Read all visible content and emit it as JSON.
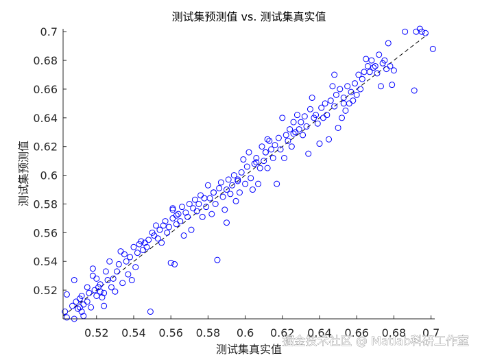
{
  "chart_data": {
    "type": "scatter",
    "title": "测试集预测值 vs. 测试集真实值",
    "xlabel": "测试集真实值",
    "ylabel": "测试集预测值",
    "xlim": [
      0.502,
      0.702
    ],
    "ylim": [
      0.5,
      0.702
    ],
    "xticks": [
      0.52,
      0.54,
      0.56,
      0.58,
      0.6,
      0.62,
      0.64,
      0.66,
      0.68,
      0.7
    ],
    "yticks": [
      0.52,
      0.54,
      0.56,
      0.58,
      0.6,
      0.62,
      0.64,
      0.66,
      0.68,
      0.7
    ],
    "xtick_labels": [
      "0.52",
      "0.54",
      "0.56",
      "0.58",
      "0.6",
      "0.62",
      "0.64",
      "0.66",
      "0.68",
      "0.7"
    ],
    "ytick_labels": [
      "0.52",
      "0.54",
      "0.56",
      "0.58",
      "0.6",
      "0.62",
      "0.64",
      "0.66",
      "0.68",
      "0.7"
    ],
    "grid": false,
    "box": "left-bottom-only",
    "marker_color": "#0000ff",
    "reference_line": {
      "style": "dashed",
      "color": "#000000",
      "x": [
        0.502,
        0.698
      ],
      "y": [
        0.502,
        0.698
      ]
    },
    "series": [
      {
        "points": [
          [
            0.503,
            0.505
          ],
          [
            0.504,
            0.517
          ],
          [
            0.504,
            0.501
          ],
          [
            0.507,
            0.509
          ],
          [
            0.508,
            0.527
          ],
          [
            0.508,
            0.5
          ],
          [
            0.509,
            0.512
          ],
          [
            0.51,
            0.507
          ],
          [
            0.511,
            0.514
          ],
          [
            0.511,
            0.508
          ],
          [
            0.512,
            0.516
          ],
          [
            0.512,
            0.505
          ],
          [
            0.513,
            0.51
          ],
          [
            0.513,
            0.502
          ],
          [
            0.515,
            0.512
          ],
          [
            0.515,
            0.522
          ],
          [
            0.516,
            0.518
          ],
          [
            0.517,
            0.508
          ],
          [
            0.518,
            0.53
          ],
          [
            0.518,
            0.535
          ],
          [
            0.519,
            0.52
          ],
          [
            0.52,
            0.516
          ],
          [
            0.52,
            0.528
          ],
          [
            0.521,
            0.522
          ],
          [
            0.522,
            0.519
          ],
          [
            0.522,
            0.524
          ],
          [
            0.523,
            0.515
          ],
          [
            0.524,
            0.518
          ],
          [
            0.524,
            0.509
          ],
          [
            0.525,
            0.533
          ],
          [
            0.526,
            0.527
          ],
          [
            0.527,
            0.54
          ],
          [
            0.528,
            0.522
          ],
          [
            0.529,
            0.528
          ],
          [
            0.53,
            0.519
          ],
          [
            0.531,
            0.533
          ],
          [
            0.532,
            0.538
          ],
          [
            0.533,
            0.547
          ],
          [
            0.534,
            0.525
          ],
          [
            0.535,
            0.545
          ],
          [
            0.536,
            0.54
          ],
          [
            0.537,
            0.531
          ],
          [
            0.538,
            0.543
          ],
          [
            0.539,
            0.527
          ],
          [
            0.54,
            0.55
          ],
          [
            0.541,
            0.536
          ],
          [
            0.542,
            0.546
          ],
          [
            0.543,
            0.552
          ],
          [
            0.544,
            0.554
          ],
          [
            0.545,
            0.548
          ],
          [
            0.546,
            0.553
          ],
          [
            0.547,
            0.55
          ],
          [
            0.548,
            0.555
          ],
          [
            0.549,
            0.505
          ],
          [
            0.55,
            0.56
          ],
          [
            0.551,
            0.558
          ],
          [
            0.552,
            0.565
          ],
          [
            0.553,
            0.556
          ],
          [
            0.554,
            0.562
          ],
          [
            0.555,
            0.553
          ],
          [
            0.556,
            0.565
          ],
          [
            0.557,
            0.568
          ],
          [
            0.558,
            0.56
          ],
          [
            0.559,
            0.564
          ],
          [
            0.56,
            0.539
          ],
          [
            0.561,
            0.57
          ],
          [
            0.561,
            0.576
          ],
          [
            0.562,
            0.538
          ],
          [
            0.563,
            0.566
          ],
          [
            0.564,
            0.573
          ],
          [
            0.565,
            0.568
          ],
          [
            0.566,
            0.578
          ],
          [
            0.567,
            0.558
          ],
          [
            0.568,
            0.574
          ],
          [
            0.569,
            0.571
          ],
          [
            0.57,
            0.58
          ],
          [
            0.571,
            0.562
          ],
          [
            0.572,
            0.577
          ],
          [
            0.573,
            0.583
          ],
          [
            0.574,
            0.575
          ],
          [
            0.575,
            0.58
          ],
          [
            0.576,
            0.586
          ],
          [
            0.577,
            0.571
          ],
          [
            0.578,
            0.584
          ],
          [
            0.579,
            0.578
          ],
          [
            0.58,
            0.593
          ],
          [
            0.581,
            0.584
          ],
          [
            0.582,
            0.573
          ],
          [
            0.583,
            0.588
          ],
          [
            0.584,
            0.58
          ],
          [
            0.585,
            0.541
          ],
          [
            0.586,
            0.591
          ],
          [
            0.587,
            0.595
          ],
          [
            0.588,
            0.585
          ],
          [
            0.589,
            0.576
          ],
          [
            0.59,
            0.59
          ],
          [
            0.591,
            0.597
          ],
          [
            0.592,
            0.587
          ],
          [
            0.593,
            0.593
          ],
          [
            0.594,
            0.6
          ],
          [
            0.595,
            0.582
          ],
          [
            0.596,
            0.596
          ],
          [
            0.597,
            0.588
          ],
          [
            0.598,
            0.602
          ],
          [
            0.599,
            0.611
          ],
          [
            0.6,
            0.594
          ],
          [
            0.601,
            0.606
          ],
          [
            0.602,
            0.616
          ],
          [
            0.603,
            0.598
          ],
          [
            0.604,
            0.59
          ],
          [
            0.605,
            0.608
          ],
          [
            0.606,
            0.612
          ],
          [
            0.607,
            0.594
          ],
          [
            0.608,
            0.605
          ],
          [
            0.609,
            0.62
          ],
          [
            0.61,
            0.61
          ],
          [
            0.611,
            0.616
          ],
          [
            0.612,
            0.605
          ],
          [
            0.613,
            0.624
          ],
          [
            0.614,
            0.618
          ],
          [
            0.615,
            0.612
          ],
          [
            0.616,
            0.621
          ],
          [
            0.617,
            0.594
          ],
          [
            0.618,
            0.626
          ],
          [
            0.619,
            0.618
          ],
          [
            0.62,
            0.64
          ],
          [
            0.621,
            0.612
          ],
          [
            0.622,
            0.628
          ],
          [
            0.623,
            0.624
          ],
          [
            0.624,
            0.632
          ],
          [
            0.625,
            0.62
          ],
          [
            0.626,
            0.637
          ],
          [
            0.627,
            0.63
          ],
          [
            0.628,
            0.642
          ],
          [
            0.629,
            0.632
          ],
          [
            0.63,
            0.637
          ],
          [
            0.631,
            0.628
          ],
          [
            0.632,
            0.641
          ],
          [
            0.633,
            0.634
          ],
          [
            0.634,
            0.615
          ],
          [
            0.635,
            0.646
          ],
          [
            0.636,
            0.654
          ],
          [
            0.637,
            0.64
          ],
          [
            0.638,
            0.642
          ],
          [
            0.639,
            0.636
          ],
          [
            0.64,
            0.622
          ],
          [
            0.641,
            0.647
          ],
          [
            0.642,
            0.64
          ],
          [
            0.643,
            0.65
          ],
          [
            0.644,
            0.642
          ],
          [
            0.645,
            0.625
          ],
          [
            0.646,
            0.652
          ],
          [
            0.647,
            0.662
          ],
          [
            0.648,
            0.648
          ],
          [
            0.649,
            0.656
          ],
          [
            0.65,
            0.633
          ],
          [
            0.651,
            0.66
          ],
          [
            0.652,
            0.64
          ],
          [
            0.653,
            0.654
          ],
          [
            0.654,
            0.645
          ],
          [
            0.655,
            0.662
          ],
          [
            0.656,
            0.65
          ],
          [
            0.657,
            0.658
          ],
          [
            0.658,
            0.652
          ],
          [
            0.659,
            0.664
          ],
          [
            0.66,
            0.656
          ],
          [
            0.661,
            0.67
          ],
          [
            0.662,
            0.66
          ],
          [
            0.663,
            0.667
          ],
          [
            0.664,
            0.672
          ],
          [
            0.665,
            0.681
          ],
          [
            0.666,
            0.676
          ],
          [
            0.667,
            0.672
          ],
          [
            0.668,
            0.68
          ],
          [
            0.669,
            0.675
          ],
          [
            0.67,
            0.676
          ],
          [
            0.671,
            0.671
          ],
          [
            0.672,
            0.684
          ],
          [
            0.673,
            0.662
          ],
          [
            0.674,
            0.678
          ],
          [
            0.675,
            0.68
          ],
          [
            0.676,
            0.674
          ],
          [
            0.677,
            0.692
          ],
          [
            0.678,
            0.676
          ],
          [
            0.679,
            0.663
          ],
          [
            0.68,
            0.673
          ],
          [
            0.686,
            0.7
          ],
          [
            0.691,
            0.659
          ],
          [
            0.692,
            0.7
          ],
          [
            0.694,
            0.702
          ],
          [
            0.695,
            0.7
          ],
          [
            0.697,
            0.699
          ],
          [
            0.701,
            0.688
          ],
          [
            0.648,
            0.67
          ],
          [
            0.653,
            0.65
          ],
          [
            0.611,
            0.616
          ],
          [
            0.596,
            0.597
          ],
          [
            0.583,
            0.588
          ],
          [
            0.561,
            0.577
          ],
          [
            0.563,
            0.572
          ],
          [
            0.59,
            0.567
          ],
          [
            0.606,
            0.609
          ],
          [
            0.612,
            0.625
          ],
          [
            0.626,
            0.629
          ]
        ]
      }
    ]
  },
  "watermark": "掘金技术社区 @ Matlab科研工作室"
}
